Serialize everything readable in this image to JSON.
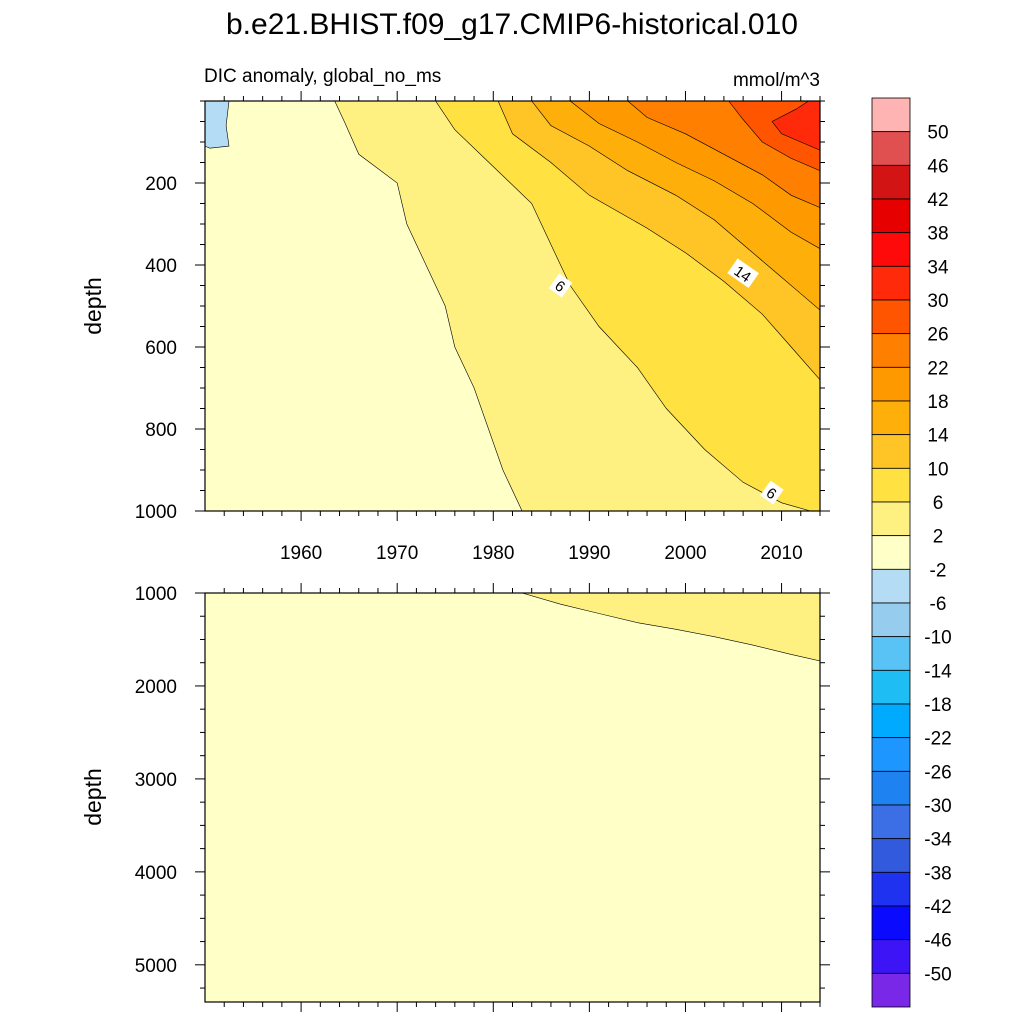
{
  "chart_data": {
    "type": "heatmap",
    "title": "b.e21.BHIST.f09_g17.CMIP6-historical.010",
    "subtitle_left": "DIC anomaly, global_no_ms",
    "subtitle_right": "mmol/m^3",
    "x_ticks": [
      "1960",
      "1970",
      "1980",
      "1990",
      "2000",
      "2010"
    ],
    "x_tick_values": [
      1960,
      1970,
      1980,
      1990,
      2000,
      2010
    ],
    "xlim": [
      1950,
      2014
    ],
    "panels": [
      {
        "name": "upper",
        "ylabel": "depth",
        "ylim": [
          0,
          1000
        ],
        "y_reversed": true,
        "y_ticks": [
          "200",
          "400",
          "600",
          "800",
          "1000"
        ],
        "y_tick_values": [
          200,
          400,
          600,
          800,
          1000
        ],
        "contour_labels": [
          {
            "text": "6",
            "year": 1987,
            "depth": 450
          },
          {
            "text": "14",
            "year": 2006,
            "depth": 420
          },
          {
            "text": "6",
            "year": 2009,
            "depth": 955
          }
        ],
        "regions": [
          {
            "level": "-2 to 2",
            "color": "#ffffc8",
            "desc": "background"
          },
          {
            "level": "2 to 6",
            "color": "#fff082",
            "points": [
              [
                1963.5,
                0
              ],
              [
                1964.5,
                50
              ],
              [
                1966,
                130
              ],
              [
                1970,
                200
              ],
              [
                1971,
                300
              ],
              [
                1973,
                400
              ],
              [
                1975,
                500
              ],
              [
                1976,
                600
              ],
              [
                1978,
                700
              ],
              [
                1979.5,
                800
              ],
              [
                1981,
                900
              ],
              [
                1983,
                1000
              ],
              [
                2014,
                1000
              ],
              [
                2014,
                0
              ]
            ]
          },
          {
            "level": "6 to 10",
            "color": "#ffe141",
            "points": [
              [
                1974,
                0
              ],
              [
                1976,
                70
              ],
              [
                1980,
                160
              ],
              [
                1984,
                250
              ],
              [
                1986,
                350
              ],
              [
                1988,
                450
              ],
              [
                1991,
                550
              ],
              [
                1995,
                650
              ],
              [
                1998,
                750
              ],
              [
                2002,
                850
              ],
              [
                2006,
                930
              ],
              [
                2010,
                980
              ],
              [
                2013,
                1000
              ],
              [
                2014,
                1000
              ],
              [
                2014,
                0
              ]
            ]
          },
          {
            "level": "10 to 14",
            "color": "#ffc425",
            "points": [
              [
                1980.5,
                0
              ],
              [
                1982,
                80
              ],
              [
                1986,
                150
              ],
              [
                1990,
                230
              ],
              [
                1996,
                310
              ],
              [
                2000,
                370
              ],
              [
                2004,
                440
              ],
              [
                2008,
                520
              ],
              [
                2011,
                600
              ],
              [
                2014,
                680
              ],
              [
                2014,
                0
              ]
            ]
          },
          {
            "level": "14 to 18",
            "color": "#ffaf0a",
            "points": [
              [
                1984,
                0
              ],
              [
                1986,
                60
              ],
              [
                1990,
                110
              ],
              [
                1994,
                170
              ],
              [
                1999,
                230
              ],
              [
                2003,
                290
              ],
              [
                2006,
                350
              ],
              [
                2009,
                410
              ],
              [
                2012,
                470
              ],
              [
                2014,
                510
              ],
              [
                2014,
                0
              ]
            ]
          },
          {
            "level": "18 to 22",
            "color": "#ff9900",
            "points": [
              [
                1988,
                0
              ],
              [
                1991,
                55
              ],
              [
                1995,
                100
              ],
              [
                1999,
                150
              ],
              [
                2003,
                195
              ],
              [
                2007,
                250
              ],
              [
                2011,
                320
              ],
              [
                2014,
                360
              ],
              [
                2014,
                0
              ]
            ]
          },
          {
            "level": "22 to 26",
            "color": "#ff7f00",
            "points": [
              [
                1994,
                0
              ],
              [
                1996,
                40
              ],
              [
                2000,
                80
              ],
              [
                2004,
                130
              ],
              [
                2008,
                180
              ],
              [
                2011,
                230
              ],
              [
                2014,
                260
              ],
              [
                2014,
                0
              ]
            ]
          },
          {
            "level": "26 to 30",
            "color": "#ff5500",
            "points": [
              [
                2004.5,
                0
              ],
              [
                2006,
                45
              ],
              [
                2008,
                100
              ],
              [
                2011,
                140
              ],
              [
                2014,
                170
              ],
              [
                2014,
                0
              ]
            ]
          },
          {
            "level": "30 to 34",
            "color": "#ff2a0a",
            "points": [
              [
                2009,
                50
              ],
              [
                2011.5,
                20
              ],
              [
                2012.8,
                0
              ],
              [
                2014,
                0
              ],
              [
                2014,
                120
              ],
              [
                2012,
                100
              ],
              [
                2010,
                80
              ]
            ]
          },
          {
            "level": "-6 to -2",
            "color": "#b4dcf5",
            "points": [
              [
                1950,
                0
              ],
              [
                1952.5,
                0
              ],
              [
                1952.2,
                60
              ],
              [
                1952.5,
                110
              ],
              [
                1950.5,
                115
              ],
              [
                1950,
                110
              ]
            ]
          }
        ]
      },
      {
        "name": "lower",
        "ylabel": "depth",
        "ylim": [
          1000,
          5400
        ],
        "y_reversed": true,
        "y_ticks": [
          "1000",
          "2000",
          "3000",
          "4000",
          "5000"
        ],
        "y_tick_values": [
          1000,
          2000,
          3000,
          4000,
          5000
        ],
        "regions": [
          {
            "level": "-2 to 2",
            "color": "#ffffc8",
            "desc": "background"
          },
          {
            "level": "2 to 6",
            "color": "#fff082",
            "points": [
              [
                1983,
                1000
              ],
              [
                1987,
                1120
              ],
              [
                1991,
                1220
              ],
              [
                1995,
                1320
              ],
              [
                1999,
                1390
              ],
              [
                2003,
                1470
              ],
              [
                2007,
                1560
              ],
              [
                2011,
                1660
              ],
              [
                2014,
                1730
              ],
              [
                2014,
                1000
              ]
            ]
          }
        ]
      }
    ],
    "colorbar": {
      "labels": [
        "50",
        "46",
        "42",
        "38",
        "34",
        "30",
        "26",
        "22",
        "18",
        "14",
        "10",
        "6",
        "2",
        "-2",
        "-6",
        "-10",
        "-14",
        "-18",
        "-22",
        "-26",
        "-30",
        "-34",
        "-38",
        "-42",
        "-46",
        "-50"
      ],
      "colors": [
        "#ffb4b4",
        "#e05050",
        "#d21414",
        "#e60000",
        "#ff0a0a",
        "#ff2a0a",
        "#ff5500",
        "#ff7f00",
        "#ff9900",
        "#ffaf0a",
        "#ffc425",
        "#ffe141",
        "#fff082",
        "#ffffc8",
        "#b4dcf5",
        "#96cdee",
        "#5ac3f5",
        "#1ebef5",
        "#00aaff",
        "#1e96ff",
        "#1e82f0",
        "#3c6ee6",
        "#325adc",
        "#1e32f0",
        "#0a0aff",
        "#3c14f5",
        "#7828e6"
      ]
    }
  }
}
